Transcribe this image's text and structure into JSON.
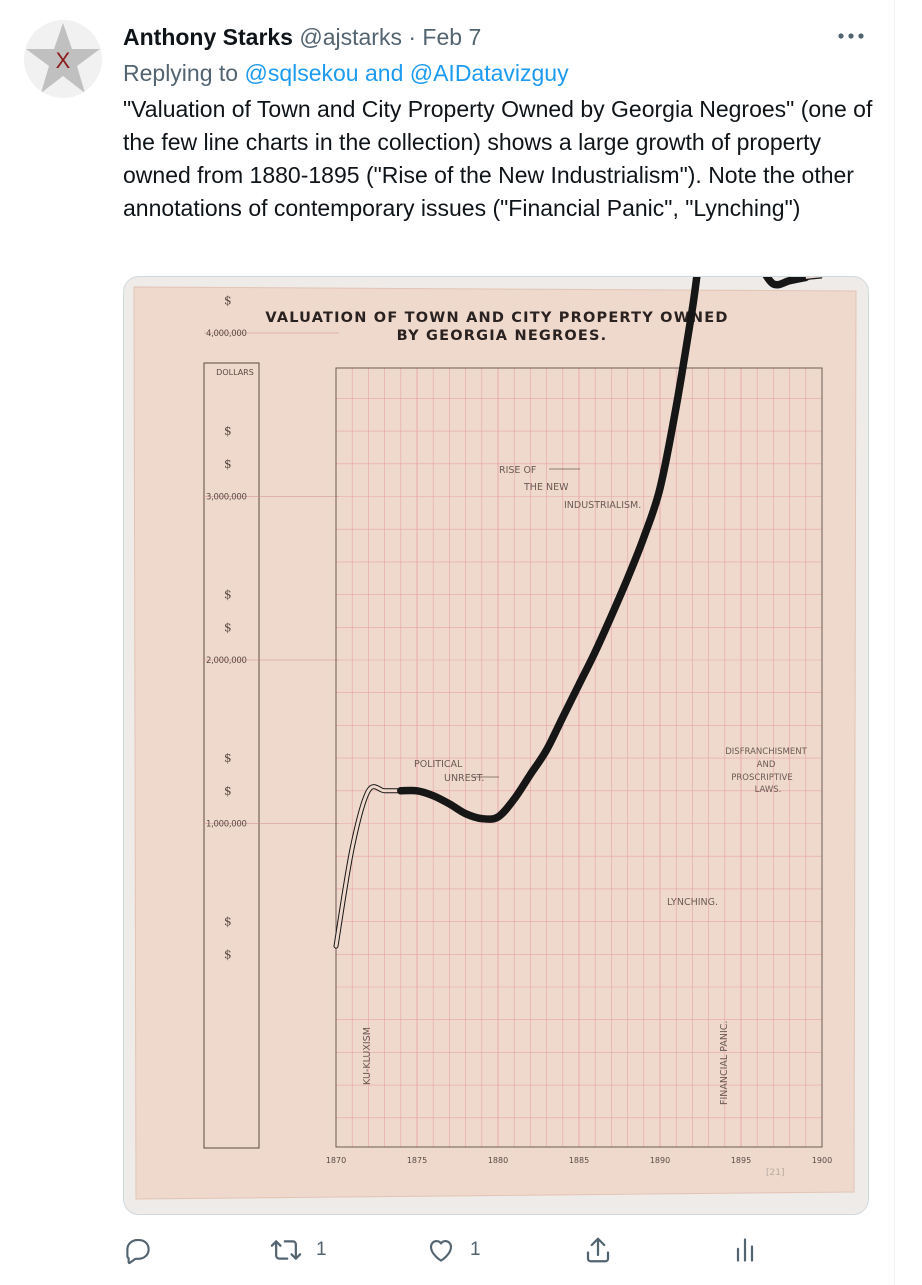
{
  "tweet": {
    "author_name": "Anthony Starks",
    "author_handle": "@ajstarks",
    "separator": "·",
    "date": "Feb 7",
    "replying_prefix": "Replying to",
    "replying_to": "@sqlsekou and @AIDatavizguy",
    "text": "\"Valuation of Town and City Property Owned by Georgia Negroes\" (one of the few line charts in the collection) shows a large growth of property owned from 1880-1895 (\"Rise of the New Industrialism\"). Note the other annotations of contemporary issues (\"Financial Panic\", \"Lynching\")",
    "avatar_letter": "X",
    "more_icon": "more-horizontal-icon"
  },
  "media": {
    "title_line1": "VALUATION OF TOWN AND CITY PROPERTY OWNED",
    "title_line2": "BY GEORGIA NEGROES.",
    "dollars_label": "DOLLARS",
    "dollar_sign": "$",
    "y_ticks": [
      "4,000,000",
      "3,000,000",
      "2,000,000",
      "1,000,000"
    ],
    "x_ticks": [
      "1870",
      "1875",
      "1880",
      "1885",
      "1890",
      "1895",
      "1900"
    ],
    "annotations": {
      "rise1": "RISE OF",
      "rise2": "THE NEW",
      "rise3": "INDUSTRIALISM.",
      "political1": "POLITICAL",
      "political2": "UNREST.",
      "disfr1": "DISFRANCHISMENT",
      "disfr2": "AND",
      "disfr3": "PROSCRIPTIVE",
      "disfr4": "LAWS.",
      "lynching": "LYNCHING.",
      "kkk": "KU-KLUXISM",
      "panic": "FINANCIAL PANIC."
    },
    "signature": "[21]",
    "colors": {
      "paper": "#efd9cc",
      "grid": "#e8a3a8",
      "line": "#161616"
    }
  },
  "chart_data": {
    "type": "line",
    "title": "VALUATION OF TOWN AND CITY PROPERTY OWNED BY GEORGIA NEGROES.",
    "xlabel": "",
    "ylabel": "DOLLARS",
    "x": [
      1870,
      1871,
      1872,
      1873,
      1874,
      1875,
      1876,
      1877,
      1878,
      1879,
      1880,
      1881,
      1882,
      1883,
      1884,
      1885,
      1886,
      1887,
      1888,
      1889,
      1890,
      1891,
      1892,
      1893,
      1894,
      1895,
      1896,
      1897,
      1898,
      1899,
      1900
    ],
    "values": [
      250000,
      850000,
      1200000,
      1200000,
      1200000,
      1200000,
      1170000,
      1120000,
      1060000,
      1030000,
      1040000,
      1150000,
      1300000,
      1450000,
      1650000,
      1850000,
      2050000,
      2270000,
      2500000,
      2750000,
      3050000,
      3550000,
      4150000,
      4800000,
      4650000,
      4400000,
      4420000,
      4300000,
      4320000,
      4340000,
      4350000
    ],
    "xlim": [
      1870,
      1900
    ],
    "ylim": [
      0,
      4800000
    ],
    "grid": true
  },
  "actions": {
    "reply_icon": "reply-icon",
    "retweet_icon": "retweet-icon",
    "retweet_count": "1",
    "like_icon": "heart-icon",
    "like_count": "1",
    "share_icon": "share-icon",
    "analytics_icon": "analytics-icon"
  }
}
